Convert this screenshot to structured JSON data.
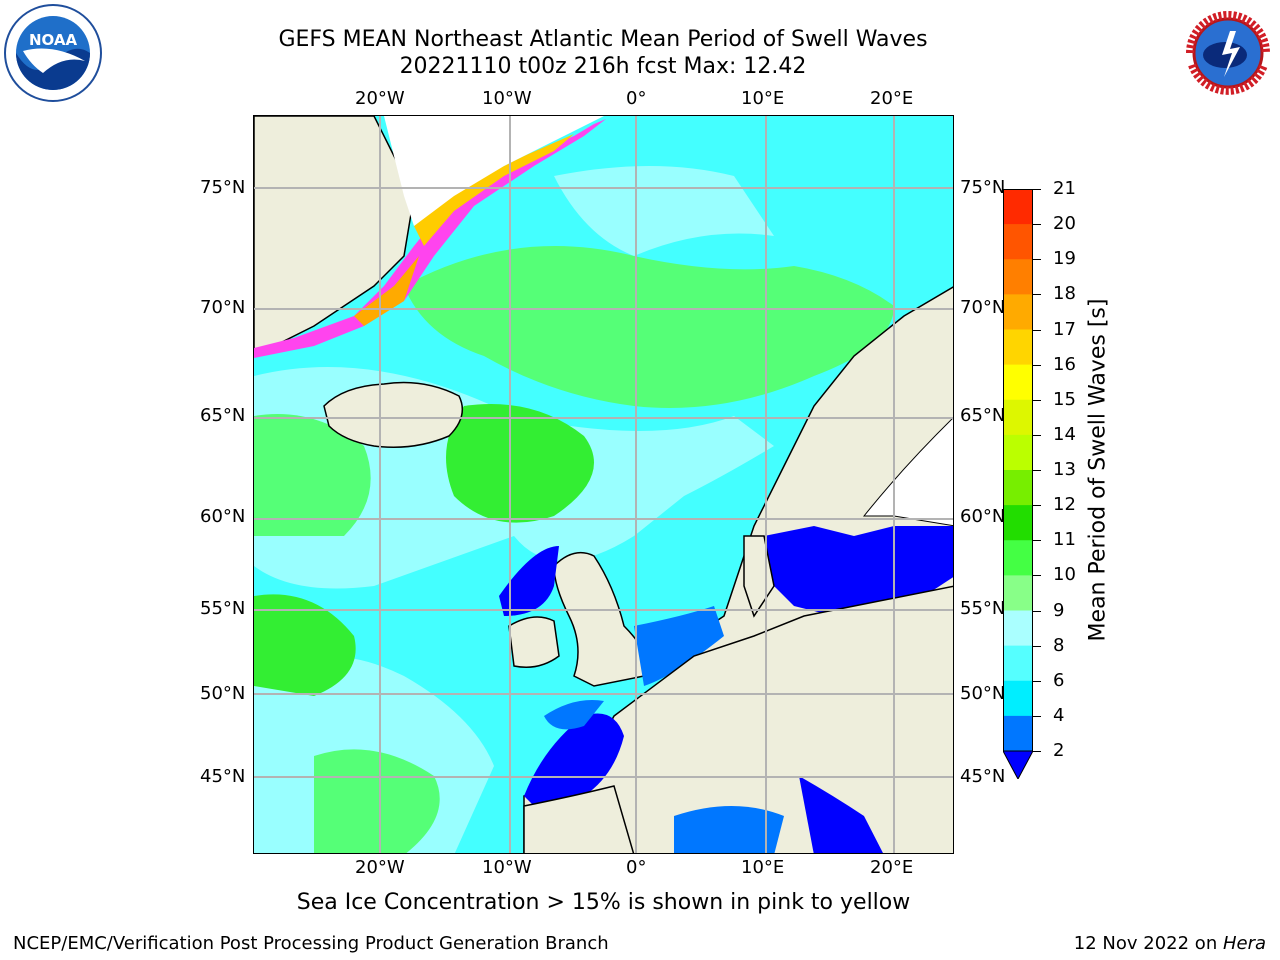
{
  "title_line1": "GEFS MEAN Northeast Atlantic Mean Period of Swell Waves",
  "title_line2": "20221110 t00z 216h fcst   Max: 12.42",
  "lon_labels": [
    "20°W",
    "10°W",
    "0°",
    "10°E",
    "20°E"
  ],
  "lat_labels": [
    "75°N",
    "70°N",
    "65°N",
    "60°N",
    "55°N",
    "50°N",
    "45°N"
  ],
  "colorbar": {
    "label": "Mean Period of Swell Waves [s]",
    "ticks": [
      "21",
      "20",
      "19",
      "18",
      "17",
      "16",
      "15",
      "14",
      "13",
      "12",
      "11",
      "10",
      "9",
      "8",
      "6",
      "4",
      "2"
    ],
    "colors": [
      "#ff0000",
      "#ff2a00",
      "#ff5500",
      "#ff7f00",
      "#ffaa00",
      "#ffd500",
      "#ffff00",
      "#ddf700",
      "#bbff00",
      "#77ee00",
      "#22dd00",
      "#44ff44",
      "#88ff88",
      "#aaffff",
      "#55ffff",
      "#00eeff",
      "#0077ff",
      "#0000ff"
    ]
  },
  "seaice_note": "Sea Ice Concentration > 15% is shown in pink to yellow",
  "footer_left": "NCEP/EMC/Verification Post Processing Product Generation Branch",
  "footer_date": "12 Nov 2022 on ",
  "footer_machine": "Hera",
  "logos": {
    "left": "noaa-logo",
    "right": "nws-logo"
  }
}
